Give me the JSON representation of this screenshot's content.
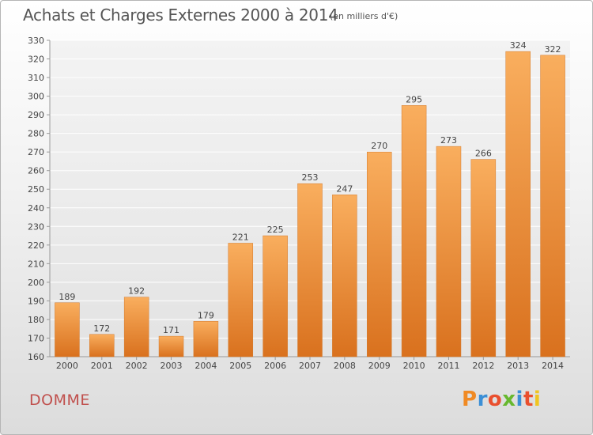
{
  "header": {
    "title": "Achats et Charges Externes 2000 à 2014",
    "subtitle": "(en milliers d'€)"
  },
  "footer": {
    "commune": "DOMME",
    "brand": "Proxiti",
    "brand_colors": [
      "#f08a24",
      "#3b8fd6",
      "#e94f2e",
      "#67b82e",
      "#3b8fd6",
      "#e94f2e",
      "#f0c420"
    ]
  },
  "colors": {
    "bar_top": "#f9ae5e",
    "bar_bottom": "#d9711e",
    "grid": "#ffffff",
    "axis": "#999999"
  },
  "chart_data": {
    "type": "bar",
    "categories": [
      "2000",
      "2001",
      "2002",
      "2003",
      "2004",
      "2005",
      "2006",
      "2007",
      "2008",
      "2009",
      "2010",
      "2011",
      "2012",
      "2013",
      "2014"
    ],
    "values": [
      189,
      172,
      192,
      171,
      179,
      221,
      225,
      253,
      247,
      270,
      295,
      273,
      266,
      324,
      322
    ],
    "ylim": [
      160,
      330
    ],
    "yticks": [
      160,
      170,
      180,
      190,
      200,
      210,
      220,
      230,
      240,
      250,
      260,
      270,
      280,
      290,
      300,
      310,
      320,
      330
    ],
    "grid": true,
    "legend": "none"
  }
}
